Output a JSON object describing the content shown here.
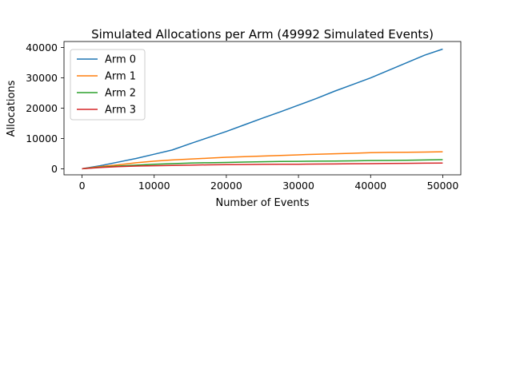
{
  "chart_data": {
    "type": "line",
    "title": "Simulated Allocations per Arm (49992 Simulated Events)",
    "xlabel": "Number of Events",
    "ylabel": "Allocations",
    "xlim": [
      -2500,
      52500
    ],
    "ylim": [
      -2000,
      42000
    ],
    "xticks": [
      0,
      10000,
      20000,
      30000,
      40000,
      50000
    ],
    "yticks": [
      0,
      10000,
      20000,
      30000,
      40000
    ],
    "grid": false,
    "legend_position": "upper-left",
    "series": [
      {
        "name": "Arm 0",
        "color": "#1f77b4",
        "x": [
          0,
          2500,
          5000,
          7500,
          10000,
          12500,
          15000,
          17500,
          20000,
          22500,
          25000,
          27500,
          30000,
          32500,
          35000,
          37500,
          40000,
          42500,
          45000,
          47500,
          49992
        ],
        "y": [
          0,
          1000,
          2200,
          3400,
          4800,
          6200,
          8300,
          10300,
          12300,
          14500,
          16700,
          18800,
          21000,
          23200,
          25600,
          27800,
          30000,
          32500,
          35000,
          37500,
          39500
        ]
      },
      {
        "name": "Arm 1",
        "color": "#ff7f0e",
        "x": [
          0,
          2500,
          5000,
          7500,
          10000,
          12500,
          15000,
          17500,
          20000,
          22500,
          25000,
          27500,
          30000,
          32500,
          35000,
          37500,
          40000,
          42500,
          45000,
          47500,
          49992
        ],
        "y": [
          0,
          700,
          1300,
          2000,
          2500,
          2900,
          3200,
          3500,
          3800,
          4000,
          4200,
          4400,
          4600,
          4800,
          4950,
          5100,
          5300,
          5400,
          5450,
          5500,
          5600
        ]
      },
      {
        "name": "Arm 2",
        "color": "#2ca02c",
        "x": [
          0,
          2500,
          5000,
          7500,
          10000,
          12500,
          15000,
          17500,
          20000,
          22500,
          25000,
          27500,
          30000,
          32500,
          35000,
          37500,
          40000,
          42500,
          45000,
          47500,
          49992
        ],
        "y": [
          0,
          500,
          900,
          1200,
          1500,
          1700,
          1900,
          2000,
          2100,
          2200,
          2300,
          2400,
          2450,
          2500,
          2550,
          2600,
          2700,
          2750,
          2800,
          2900,
          3000
        ]
      },
      {
        "name": "Arm 3",
        "color": "#d62728",
        "x": [
          0,
          2500,
          5000,
          7500,
          10000,
          12500,
          15000,
          17500,
          20000,
          22500,
          25000,
          27500,
          30000,
          32500,
          35000,
          37500,
          40000,
          42500,
          45000,
          47500,
          49992
        ],
        "y": [
          0,
          400,
          700,
          900,
          1000,
          1100,
          1200,
          1300,
          1350,
          1400,
          1450,
          1500,
          1500,
          1550,
          1600,
          1650,
          1700,
          1750,
          1800,
          1850,
          1900
        ]
      }
    ]
  }
}
